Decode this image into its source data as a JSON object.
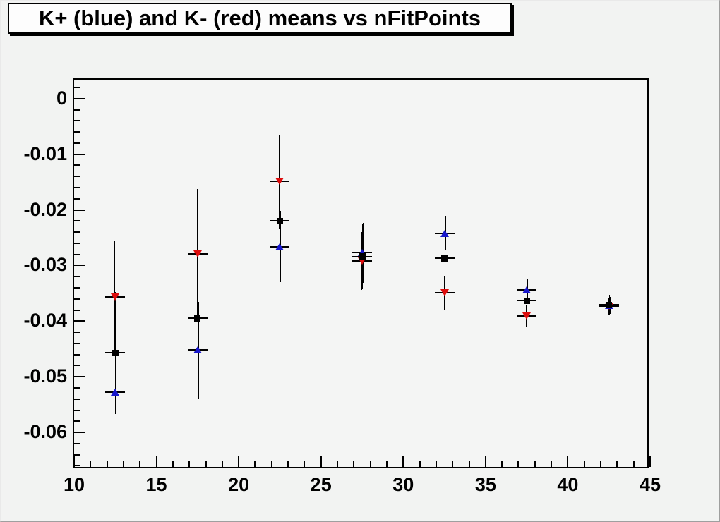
{
  "title": "K+ (blue) and K- (red) means vs nFitPoints",
  "colors": {
    "canvas_bg": "#f2f3f2",
    "frame_bg": "#f4f5f4",
    "title_box_bg": "#fdfdfd",
    "axis": "#000000",
    "kplus_blue": "#1717cc",
    "kminus_red": "#dd0c0c",
    "black_marker": "#000000"
  },
  "chart_data": {
    "type": "scatter",
    "title": "K+ (blue) and K- (red) means vs nFitPoints",
    "xlabel": "",
    "ylabel": "",
    "xlim": [
      10,
      45
    ],
    "ylim": [
      -0.0667,
      0.0034
    ],
    "grid": false,
    "legend_position": "none",
    "x_major_ticks": [
      {
        "value": 10,
        "label": "10"
      },
      {
        "value": 15,
        "label": "15"
      },
      {
        "value": 20,
        "label": "20"
      },
      {
        "value": 25,
        "label": "25"
      },
      {
        "value": 30,
        "label": "30"
      },
      {
        "value": 35,
        "label": "35"
      },
      {
        "value": 40,
        "label": "40"
      },
      {
        "value": 45,
        "label": "45"
      }
    ],
    "x_minor_step": 1,
    "y_major_ticks": [
      {
        "value": 0,
        "label": "0"
      },
      {
        "value": -0.01,
        "label": "-0.01"
      },
      {
        "value": -0.02,
        "label": "-0.02"
      },
      {
        "value": -0.03,
        "label": "-0.03"
      },
      {
        "value": -0.04,
        "label": "-0.04"
      },
      {
        "value": -0.05,
        "label": "-0.05"
      },
      {
        "value": -0.06,
        "label": "-0.06"
      }
    ],
    "y_minor_step": 0.002,
    "xerr_half_width": 0.6,
    "series": [
      {
        "name": "K- (red)",
        "marker": "triangle-down",
        "color": "#dd0c0c",
        "errorbar_color": "#000000",
        "points": [
          {
            "x": 12.5,
            "y": -0.0357,
            "ey": 0.0102
          },
          {
            "x": 17.5,
            "y": -0.0279,
            "ey": 0.0117
          },
          {
            "x": 22.5,
            "y": -0.0149,
            "ey": 0.0084
          },
          {
            "x": 27.5,
            "y": -0.0292,
            "ey": 0.0052
          },
          {
            "x": 32.5,
            "y": -0.0349,
            "ey": 0.003
          },
          {
            "x": 37.5,
            "y": -0.0391,
            "ey": 0.0019
          },
          {
            "x": 42.5,
            "y": -0.0373,
            "ey": 0.0015
          }
        ]
      },
      {
        "name": "K+ (blue)",
        "marker": "triangle-up",
        "color": "#1717cc",
        "errorbar_color": "#000000",
        "points": [
          {
            "x": 12.5,
            "y": -0.0527,
            "ey": 0.0099
          },
          {
            "x": 17.5,
            "y": -0.0452,
            "ey": 0.0087
          },
          {
            "x": 22.5,
            "y": -0.0266,
            "ey": 0.0064
          },
          {
            "x": 27.5,
            "y": -0.0277,
            "ey": 0.0054
          },
          {
            "x": 32.5,
            "y": -0.0242,
            "ey": 0.0031
          },
          {
            "x": 37.5,
            "y": -0.0344,
            "ey": 0.0019
          },
          {
            "x": 42.5,
            "y": -0.0372,
            "ey": 0.0015
          }
        ]
      },
      {
        "name": "black squares",
        "marker": "square",
        "color": "#000000",
        "errorbar_color": "#000000",
        "points": [
          {
            "x": 12.5,
            "y": -0.0457,
            "ey": 0.011
          },
          {
            "x": 17.5,
            "y": -0.0395,
            "ey": 0.01
          },
          {
            "x": 22.5,
            "y": -0.022,
            "ey": 0.0075
          },
          {
            "x": 27.5,
            "y": -0.0284,
            "ey": 0.0058
          },
          {
            "x": 32.5,
            "y": -0.0287,
            "ey": 0.004
          },
          {
            "x": 37.5,
            "y": -0.0363,
            "ey": 0.0025
          },
          {
            "x": 42.5,
            "y": -0.0371,
            "ey": 0.0018
          }
        ]
      }
    ]
  }
}
